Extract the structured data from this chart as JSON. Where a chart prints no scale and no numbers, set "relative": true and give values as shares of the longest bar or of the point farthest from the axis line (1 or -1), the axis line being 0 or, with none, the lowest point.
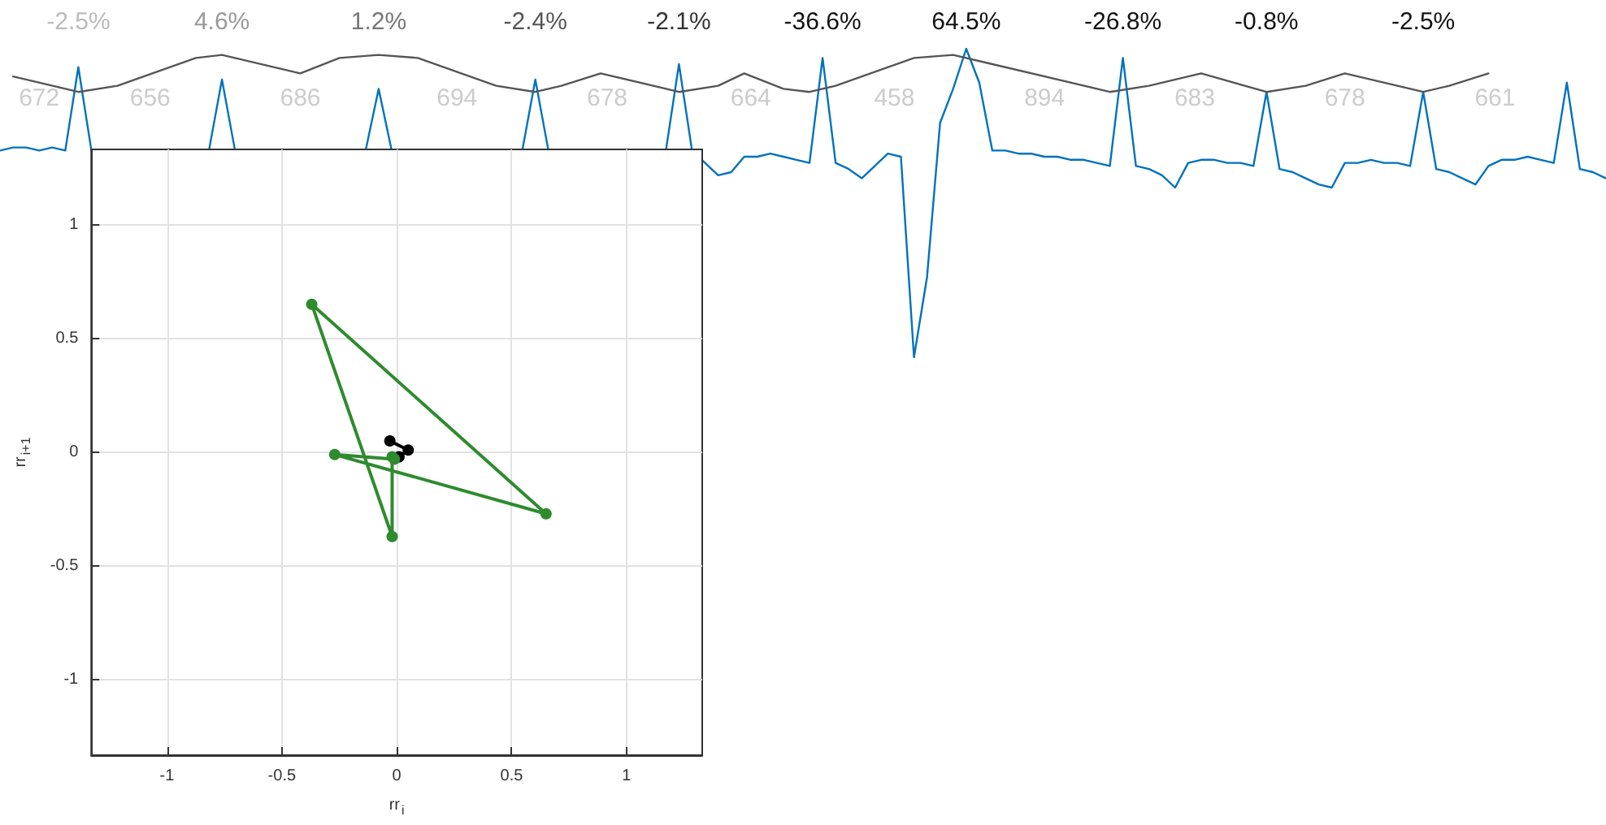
{
  "chart_data": [
    {
      "type": "line",
      "relative": true,
      "tick_labels": false,
      "marker": "none",
      "categories": [
        null,
        null,
        null,
        null,
        null,
        null,
        null,
        null,
        null,
        null,
        null,
        null,
        null,
        null,
        null,
        null,
        null,
        null,
        null,
        null,
        null,
        null,
        null,
        null,
        null,
        null,
        null,
        null,
        null,
        null,
        null,
        null,
        null,
        null,
        null,
        null,
        null,
        null,
        null,
        null,
        null,
        null,
        null,
        null,
        null,
        null,
        null,
        null,
        null,
        null,
        null,
        null,
        null,
        null,
        null,
        null,
        null,
        null,
        null,
        null,
        null,
        null,
        null,
        null,
        null,
        null,
        null,
        null,
        null,
        null,
        null,
        null,
        null,
        null,
        null,
        null,
        null,
        null,
        null,
        null,
        null,
        null,
        null,
        null,
        null,
        null,
        null,
        null,
        null,
        null,
        null,
        null,
        null,
        null,
        null,
        null,
        null,
        null,
        null,
        null,
        null,
        null,
        null,
        null,
        null,
        null,
        null,
        null,
        null,
        null,
        null,
        null,
        null,
        null,
        null,
        null,
        null,
        null,
        null,
        null,
        null,
        null,
        null,
        null
      ],
      "series": [
        {
          "color": "#0072bd",
          "values": [
            0.67,
            0.68,
            0.68,
            0.67,
            0.68,
            0.67,
            0.94,
            0.67,
            null,
            null,
            null,
            null,
            null,
            null,
            null,
            null,
            0.67,
            0.9,
            0.67,
            null,
            null,
            null,
            null,
            null,
            null,
            null,
            null,
            null,
            0.67,
            0.87,
            0.67,
            null,
            null,
            null,
            null,
            null,
            null,
            null,
            null,
            null,
            0.67,
            0.9,
            0.67,
            null,
            null,
            null,
            null,
            null,
            null,
            null,
            null,
            0.67,
            0.95,
            0.67,
            0.63,
            0.59,
            0.6,
            0.65,
            0.65,
            0.66,
            0.65,
            0.64,
            0.63,
            0.97,
            0.63,
            0.61,
            0.58,
            0.62,
            0.66,
            0.65,
            0,
            0.26,
            0.76,
            0.87,
            1,
            0.89,
            0.67,
            0.67,
            0.66,
            0.66,
            0.65,
            0.65,
            0.64,
            0.64,
            0.63,
            0.62,
            0.97,
            0.62,
            0.61,
            0.59,
            0.55,
            0.63,
            0.64,
            0.64,
            0.63,
            0.63,
            0.62,
            0.86,
            0.61,
            0.6,
            0.58,
            0.56,
            0.55,
            0.63,
            0.63,
            0.64,
            0.63,
            0.63,
            0.62,
            0.86,
            0.61,
            0.6,
            0.58,
            0.56,
            0.62,
            0.64,
            0.64,
            0.65,
            0.64,
            0.63,
            0.89,
            0.61,
            0.6,
            0.58
          ]
        },
        {
          "color": "#555555",
          "values": [
            null,
            0.91,
            null,
            null,
            null,
            null,
            0.86,
            null,
            null,
            0.88,
            null,
            null,
            null,
            null,
            null,
            0.97,
            null,
            0.98,
            null,
            null,
            null,
            null,
            null,
            0.92,
            null,
            null,
            0.97,
            null,
            null,
            0.98,
            null,
            null,
            0.97,
            null,
            null,
            null,
            null,
            null,
            0.88,
            null,
            null,
            0.86,
            null,
            0.88,
            null,
            null,
            0.92,
            null,
            null,
            null,
            null,
            null,
            0.86,
            null,
            null,
            0.88,
            null,
            0.92,
            null,
            null,
            0.87,
            null,
            0.86,
            null,
            0.88,
            null,
            null,
            null,
            null,
            null,
            0.97,
            null,
            null,
            0.98,
            null,
            null,
            0.95,
            null,
            null,
            null,
            null,
            null,
            null,
            null,
            null,
            0.86,
            null,
            null,
            0.88,
            null,
            null,
            null,
            0.92,
            null,
            null,
            null,
            null,
            0.86,
            null,
            null,
            0.88,
            null,
            null,
            0.92,
            null,
            null,
            null,
            null,
            null,
            0.86,
            null,
            0.88,
            null,
            null,
            0.92,
            null,
            null,
            null,
            null,
            null,
            null,
            null,
            null,
            null
          ]
        }
      ],
      "annotations": [
        "-2.5%",
        "4.6%",
        "1.2%",
        "-2.4%",
        "-2.1%",
        "-36.6%",
        "64.5%",
        "-26.8%",
        "-0.8%",
        "-2.5%",
        "672",
        "656",
        "686",
        "694",
        "678",
        "664",
        "458",
        "894",
        "683",
        "678",
        "661"
      ]
    },
    {
      "type": "line",
      "marker": "circle",
      "grid": true,
      "xlabel": "rr$_{i}$",
      "ylabel": "rr$_{i+1}$",
      "xlim": [
        -1.33,
        1.33
      ],
      "ylim": [
        -1.33,
        1.33
      ],
      "xticks": [
        -1,
        -0.5,
        0,
        0.5,
        1
      ],
      "yticks": [
        -1,
        -0.5,
        0,
        0.5,
        1
      ],
      "series": [
        {
          "color": "#000000",
          "x": [
            -0.03,
            0.05,
            0.01
          ],
          "values": [
            0.05,
            0.01,
            -0.02
          ]
        },
        {
          "color": "#2e8b2e",
          "x": [
            -0.02,
            -0.02,
            -0.37,
            0.65,
            -0.27,
            -0.01
          ],
          "values": [
            -0.02,
            -0.37,
            0.65,
            -0.27,
            -0.01,
            -0.03
          ]
        }
      ]
    }
  ]
}
